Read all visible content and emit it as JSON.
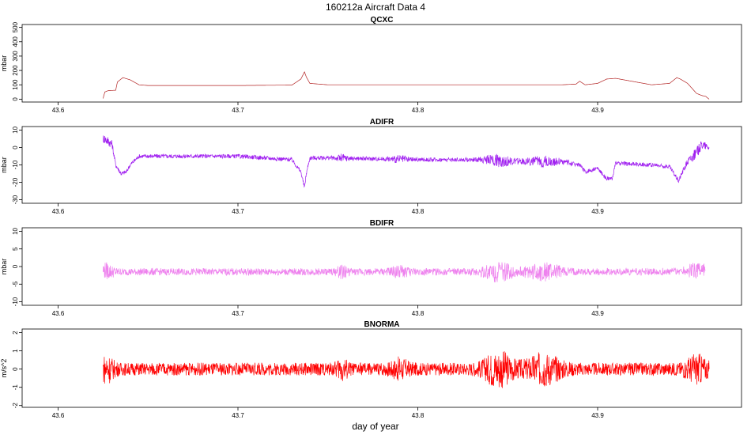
{
  "title": "160212a   Aircraft Data 4",
  "xlabel": "day of year",
  "chart_data": [
    {
      "type": "line",
      "title": "QCXC",
      "ylabel": "mbar",
      "color": "#b22222",
      "xlim": [
        43.58,
        43.98
      ],
      "ylim": [
        -20,
        520
      ],
      "xticks": [
        43.6,
        43.7,
        43.8,
        43.9
      ],
      "yticks": [
        0,
        100,
        200,
        300,
        400,
        500
      ],
      "noise": 0,
      "series": [
        {
          "x": [
            43.625,
            43.626,
            43.628,
            43.632,
            43.633,
            43.636,
            43.64,
            43.645,
            43.65,
            43.7,
            43.73,
            43.735,
            43.737,
            43.738,
            43.74,
            43.75,
            43.8,
            43.85,
            43.88,
            43.888,
            43.89,
            43.893,
            43.9,
            43.905,
            43.91,
            43.93,
            43.94,
            43.944,
            43.946,
            43.95,
            43.955,
            43.958,
            43.96,
            43.962
          ],
          "y": [
            5,
            50,
            60,
            62,
            120,
            150,
            135,
            100,
            95,
            95,
            98,
            140,
            190,
            155,
            110,
            100,
            100,
            100,
            100,
            105,
            125,
            100,
            110,
            140,
            145,
            100,
            110,
            150,
            140,
            110,
            40,
            25,
            20,
            0
          ]
        }
      ]
    },
    {
      "type": "line",
      "title": "ADIFR",
      "ylabel": "mbar",
      "color": "#a020f0",
      "xlim": [
        43.58,
        43.98
      ],
      "ylim": [
        -32,
        12
      ],
      "xticks": [
        43.6,
        43.7,
        43.8,
        43.9
      ],
      "yticks": [
        -30,
        -20,
        -10,
        0,
        10
      ],
      "noise": 1.2,
      "series": [
        {
          "x": [
            43.625,
            43.626,
            43.63,
            43.632,
            43.635,
            43.638,
            43.64,
            43.645,
            43.65,
            43.7,
            43.73,
            43.735,
            43.737,
            43.738,
            43.74,
            43.75,
            43.8,
            43.84,
            43.85,
            43.88,
            43.89,
            43.893,
            43.9,
            43.905,
            43.908,
            43.91,
            43.93,
            43.94,
            43.945,
            43.948,
            43.95,
            43.955,
            43.958,
            43.962
          ],
          "y": [
            5,
            5,
            2,
            -10,
            -15,
            -14,
            -10,
            -5,
            -5,
            -5,
            -7,
            -14,
            -23,
            -15,
            -6,
            -6,
            -7,
            -7,
            -8,
            -8,
            -10,
            -14,
            -12,
            -18,
            -18,
            -9,
            -10,
            -11,
            -19,
            -12,
            -8,
            -3,
            2,
            0
          ]
        }
      ]
    },
    {
      "type": "line",
      "title": "BDIFR",
      "ylabel": "mbar",
      "color": "#ee82ee",
      "xlim": [
        43.58,
        43.98
      ],
      "ylim": [
        -11,
        11
      ],
      "xticks": [
        43.6,
        43.7,
        43.8,
        43.9
      ],
      "yticks": [
        -10,
        -5,
        0,
        5,
        10
      ],
      "noise": 1.0,
      "series": [
        {
          "x": [
            43.625,
            43.63,
            43.7,
            43.75,
            43.8,
            43.84,
            43.86,
            43.88,
            43.9,
            43.93,
            43.96
          ],
          "y": [
            -1,
            -1.5,
            -1.5,
            -1.5,
            -1.5,
            -1.5,
            -1.5,
            -1.5,
            -1.5,
            -1.5,
            -1
          ]
        }
      ]
    },
    {
      "type": "line",
      "title": "BNORMA",
      "ylabel": "m/s^2",
      "color": "#ff0000",
      "xlim": [
        43.58,
        43.98
      ],
      "ylim": [
        -2.1,
        2.2
      ],
      "xticks": [
        43.6,
        43.7,
        43.8,
        43.9
      ],
      "yticks": [
        -2,
        -1,
        0,
        1,
        2
      ],
      "noise": 0.35,
      "series": [
        {
          "x": [
            43.625,
            43.7,
            43.8,
            43.9,
            43.962
          ],
          "y": [
            0,
            0,
            0,
            0,
            0
          ]
        }
      ]
    }
  ]
}
